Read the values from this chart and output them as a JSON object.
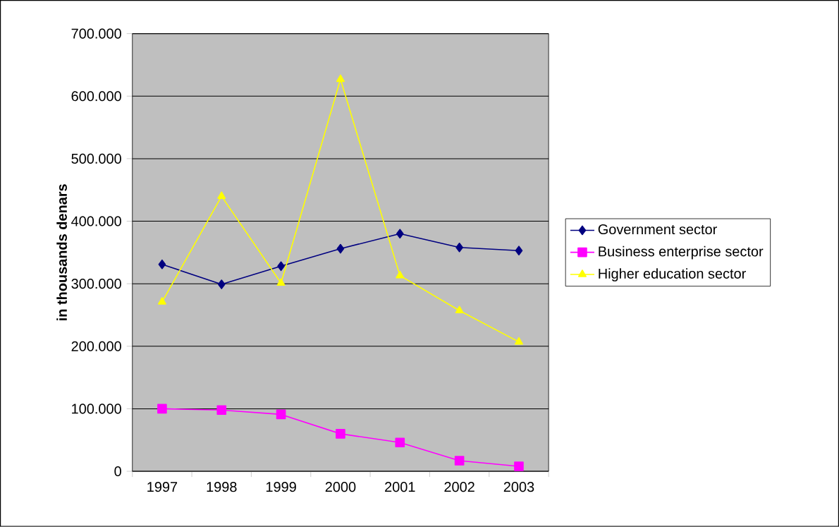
{
  "chart_data": {
    "type": "line",
    "ylabel": "in thousands denars",
    "categories": [
      "1997",
      "1998",
      "1999",
      "2000",
      "2001",
      "2002",
      "2003"
    ],
    "series": [
      {
        "name": "Government sector",
        "color": "#000080",
        "marker": "diamond",
        "values": [
          331000,
          299000,
          328000,
          356000,
          380000,
          358000,
          353000
        ]
      },
      {
        "name": "Business enterprise sector",
        "color": "#ff00ff",
        "marker": "square",
        "values": [
          100000,
          98000,
          91000,
          60000,
          46000,
          17000,
          8000
        ]
      },
      {
        "name": "Higher education sector",
        "color": "#ffff00",
        "marker": "triangle",
        "values": [
          271000,
          440000,
          301000,
          627000,
          313000,
          257000,
          207000
        ]
      }
    ],
    "ylim": [
      0,
      700000
    ],
    "yticks": [
      0,
      {
        "value": 100000,
        "label": "100.000"
      },
      {
        "value": 200000,
        "label": "200.000"
      },
      {
        "value": 300000,
        "label": "300.000"
      },
      {
        "value": 400000,
        "label": "400.000"
      },
      {
        "value": 500000,
        "label": "500.000"
      },
      {
        "value": 600000,
        "label": "600.000"
      },
      {
        "value": 700000,
        "label": "700.000"
      }
    ],
    "grid": "y",
    "legend": "right",
    "line_style": "solid"
  }
}
